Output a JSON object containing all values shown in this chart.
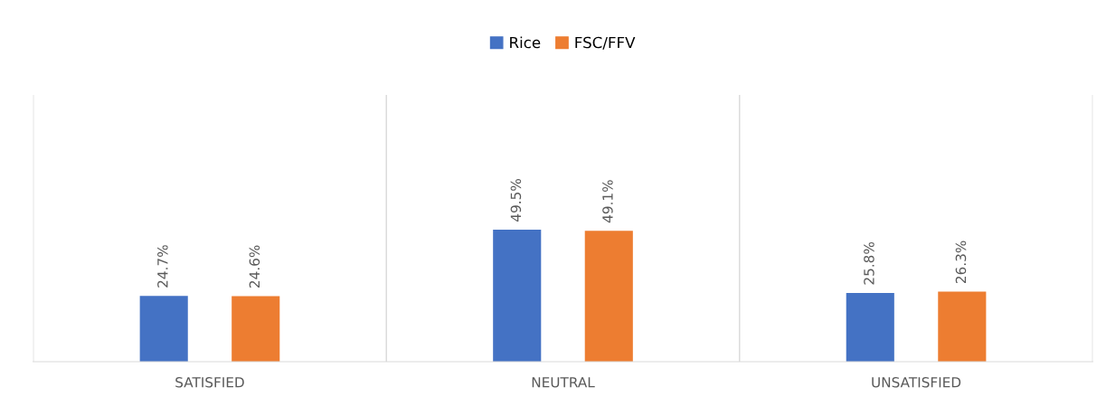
{
  "chart_data": {
    "type": "bar",
    "categories": [
      "SATISFIED",
      "NEUTRAL",
      "UNSATISFIED"
    ],
    "series": [
      {
        "name": "Rice",
        "color": "#4472c4",
        "values": [
          24.7,
          49.5,
          25.8
        ],
        "value_labels": [
          "24.7%",
          "49.5%",
          "25.8%"
        ]
      },
      {
        "name": "FSC/FFV",
        "color": "#ed7d31",
        "values": [
          24.6,
          49.1,
          26.3
        ],
        "value_labels": [
          "24.6%",
          "49.1%",
          "26.3%"
        ]
      }
    ],
    "ylim": [
      0,
      100
    ],
    "tick_labels": "x",
    "grid": "x",
    "legend": "top"
  }
}
